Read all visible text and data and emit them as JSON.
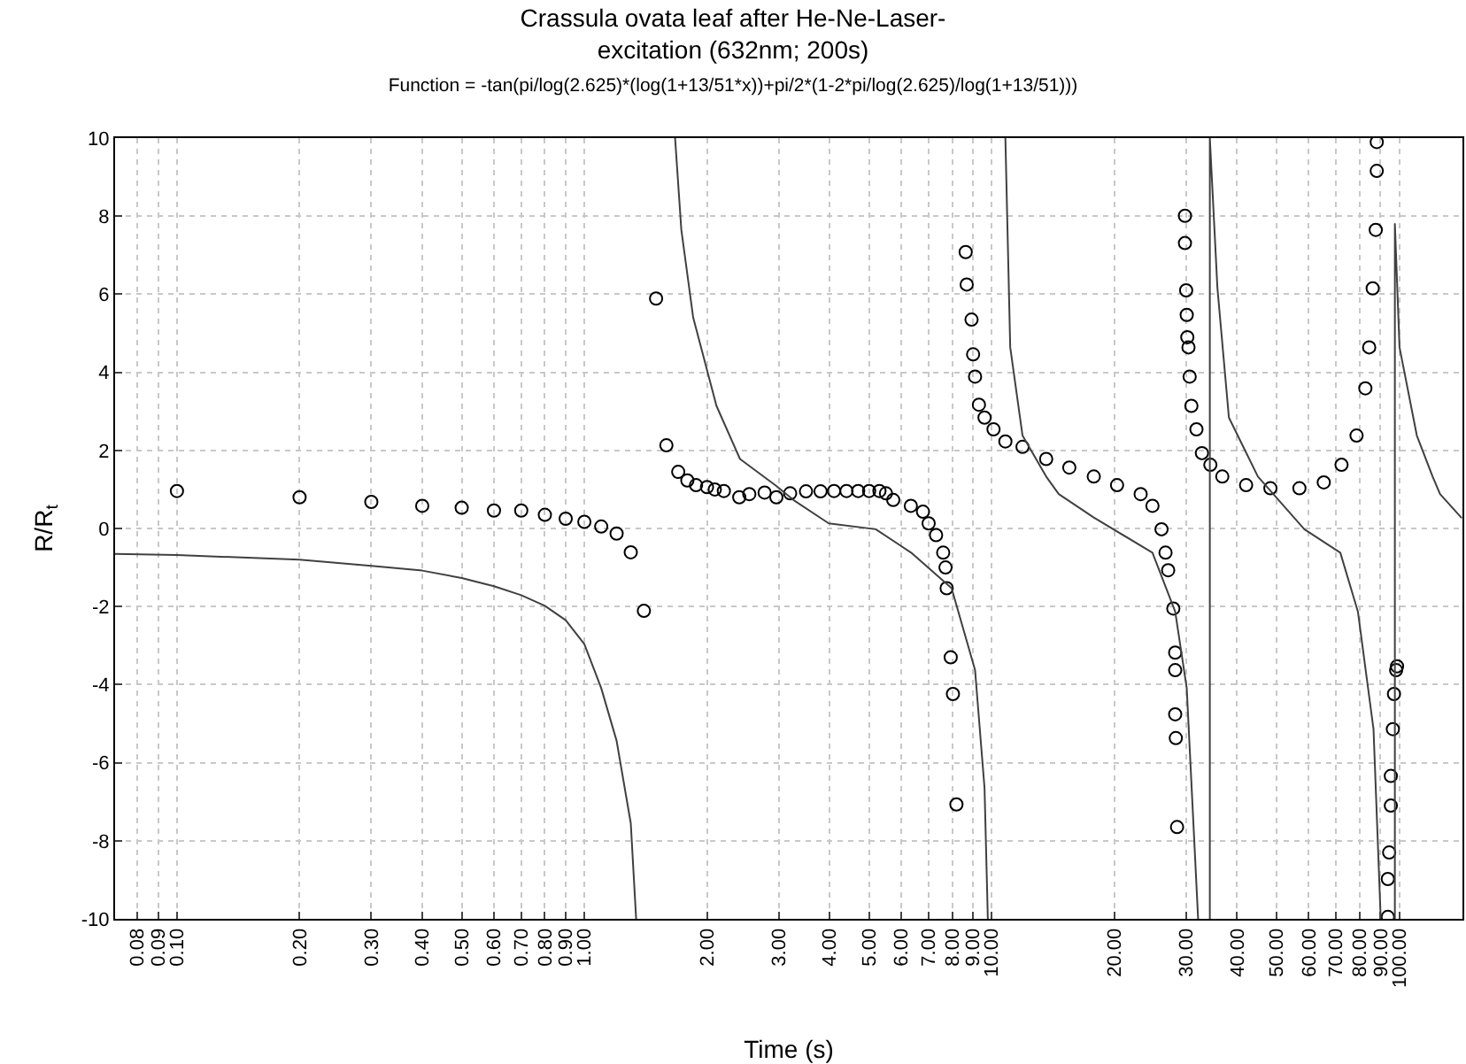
{
  "chart_data": {
    "type": "scatter",
    "title": "Crassula ovata leaf after He-Ne-Laser-\nexcitation (632nm; 200s)",
    "subtitle": "Function = -tan(pi/log(2.625)*(log(1+13/51*x))+pi/2*(1-2*pi/log(2.625)/log(1+13/51)))",
    "xlabel": "Time (s)",
    "ylabel": "R/R$_{t}$",
    "log": "x",
    "grid": true,
    "xlim": [
      0.0705,
      143
    ],
    "ylim": [
      -10,
      10
    ],
    "xticks": [
      {
        "value": 0.08,
        "label": "0.08"
      },
      {
        "value": 0.09,
        "label": "0.09"
      },
      {
        "value": 0.1,
        "label": "0.10"
      },
      {
        "value": 0.2,
        "label": "0.20"
      },
      {
        "value": 0.3,
        "label": "0.30"
      },
      {
        "value": 0.4,
        "label": "0.40"
      },
      {
        "value": 0.5,
        "label": "0.50"
      },
      {
        "value": 0.6,
        "label": "0.60"
      },
      {
        "value": 0.7,
        "label": "0.70"
      },
      {
        "value": 0.8,
        "label": "0.80"
      },
      {
        "value": 0.9,
        "label": "0.90"
      },
      {
        "value": 1,
        "label": "1.00"
      },
      {
        "value": 2,
        "label": "2.00"
      },
      {
        "value": 3,
        "label": "3.00"
      },
      {
        "value": 4,
        "label": "4.00"
      },
      {
        "value": 5,
        "label": "5.00"
      },
      {
        "value": 6,
        "label": "6.00"
      },
      {
        "value": 7,
        "label": "7.00"
      },
      {
        "value": 8,
        "label": "8.00"
      },
      {
        "value": 9,
        "label": "9.00"
      },
      {
        "value": 10,
        "label": "10.00"
      },
      {
        "value": 20,
        "label": "20.00"
      },
      {
        "value": 30,
        "label": "30.00"
      },
      {
        "value": 40,
        "label": "40.00"
      },
      {
        "value": 50,
        "label": "50.00"
      },
      {
        "value": 60,
        "label": "60.00"
      },
      {
        "value": 70,
        "label": "70.00"
      },
      {
        "value": 80,
        "label": "80.00"
      },
      {
        "value": 90,
        "label": "90.00"
      },
      {
        "value": 100,
        "label": "100.00"
      }
    ],
    "yticks": [
      -10,
      -8,
      -6,
      -4,
      -2,
      0,
      2,
      4,
      6,
      8,
      10
    ],
    "series": [
      {
        "color": "#000000",
        "marker": "circle",
        "x": [
          0.1,
          0.2,
          0.3,
          0.4,
          0.5,
          0.6,
          0.7,
          0.8,
          0.9,
          1.0,
          1.1,
          1.2,
          1.3,
          1.4,
          1.5,
          1.59,
          1.7,
          1.79,
          1.88,
          2.0,
          2.09,
          2.2,
          2.4,
          2.54,
          2.77,
          2.96,
          3.2,
          3.5,
          3.8,
          4.1,
          4.4,
          4.7,
          5.0,
          5.3,
          5.5,
          5.73,
          6.33,
          6.78,
          7.0,
          7.3,
          7.6,
          7.7,
          7.75,
          7.93,
          8.03,
          8.19,
          8.63,
          8.68,
          8.92,
          9.0,
          9.1,
          9.3,
          9.6,
          10.1,
          10.8,
          11.9,
          13.6,
          15.5,
          17.8,
          20.3,
          23.2,
          24.8,
          26.1,
          26.7,
          27.1,
          27.9,
          28.2,
          28.2,
          28.2,
          28.3,
          28.5,
          29.8,
          29.8,
          30.0,
          30.1,
          30.2,
          30.4,
          30.6,
          30.9,
          31.8,
          32.8,
          34.4,
          36.8,
          42.1,
          48.3,
          56.9,
          65.3,
          72.2,
          78.6,
          82.6,
          84.4,
          86.1,
          87.6,
          88.1,
          88.1,
          93.8,
          93.8,
          94.5,
          95.4,
          95.4,
          96.5,
          97.1,
          98.3,
          98.8
        ],
        "values": [
          0.96,
          0.8,
          0.68,
          0.58,
          0.53,
          0.46,
          0.46,
          0.35,
          0.25,
          0.17,
          0.05,
          -0.13,
          -0.61,
          -2.11,
          5.89,
          2.13,
          1.45,
          1.23,
          1.11,
          1.06,
          1.0,
          0.96,
          0.8,
          0.88,
          0.92,
          0.8,
          0.9,
          0.95,
          0.95,
          0.96,
          0.96,
          0.96,
          0.96,
          0.96,
          0.9,
          0.73,
          0.58,
          0.43,
          0.13,
          -0.17,
          -0.62,
          -1.0,
          -1.53,
          -3.3,
          -4.24,
          -7.07,
          7.08,
          6.25,
          5.35,
          4.46,
          3.89,
          3.17,
          2.84,
          2.54,
          2.23,
          2.09,
          1.78,
          1.56,
          1.33,
          1.11,
          0.88,
          0.58,
          -0.02,
          -0.62,
          -1.07,
          -2.05,
          -3.18,
          -3.63,
          -4.76,
          -5.37,
          -7.65,
          8.01,
          7.31,
          6.1,
          5.47,
          4.9,
          4.64,
          3.89,
          3.14,
          2.54,
          1.93,
          1.63,
          1.33,
          1.11,
          1.03,
          1.03,
          1.18,
          1.63,
          2.38,
          3.59,
          4.64,
          6.15,
          7.65,
          9.16,
          9.9,
          -9.95,
          -8.98,
          -8.3,
          -7.1,
          -6.34,
          -5.14,
          -4.24,
          -3.63,
          -3.53
        ]
      },
      {
        "type": "line",
        "marker": "none",
        "color": "#404040",
        "x": [
          0.0705,
          0.1,
          0.2,
          0.3,
          0.4,
          0.5,
          0.6,
          0.7,
          0.8,
          0.9,
          1.0,
          1.1,
          1.2,
          1.3,
          1.34,
          1.5,
          1.67,
          1.73,
          1.85,
          2.11,
          2.41,
          2.95,
          3.26,
          3.98,
          5.19,
          6.34,
          7.97,
          9.1,
          9.6,
          9.78,
          10.3,
          10.8,
          11.1,
          11.9,
          13.6,
          14.6,
          17.8,
          24.8,
          28.2,
          30.1,
          32.1,
          33.2,
          34.3,
          34.3,
          35.8,
          38.2,
          45,
          58.5,
          71.7,
          79.2,
          86.5,
          90.1,
          94,
          97.6,
          97.6,
          100.2,
          110.5,
          120.8,
          126,
          142
        ],
        "values": [
          -0.65,
          -0.68,
          -0.8,
          -0.96,
          -1.08,
          -1.27,
          -1.48,
          -1.71,
          -1.98,
          -2.35,
          -2.96,
          -4.09,
          -5.44,
          -7.55,
          -10,
          null,
          10,
          7.65,
          5.4,
          3.14,
          1.78,
          1.1,
          0.73,
          0.13,
          -0.02,
          -0.62,
          -1.53,
          -3.63,
          -6.65,
          -10,
          null,
          10,
          4.64,
          2.38,
          1.33,
          0.88,
          0.28,
          -0.62,
          -2.13,
          -4.09,
          -10,
          null,
          -10,
          10,
          6.16,
          2.84,
          1.33,
          -0.02,
          -0.62,
          -2.13,
          -5.14,
          -10,
          null,
          -10,
          7.8,
          4.64,
          2.38,
          1.33,
          0.88,
          0.28
        ]
      }
    ]
  }
}
